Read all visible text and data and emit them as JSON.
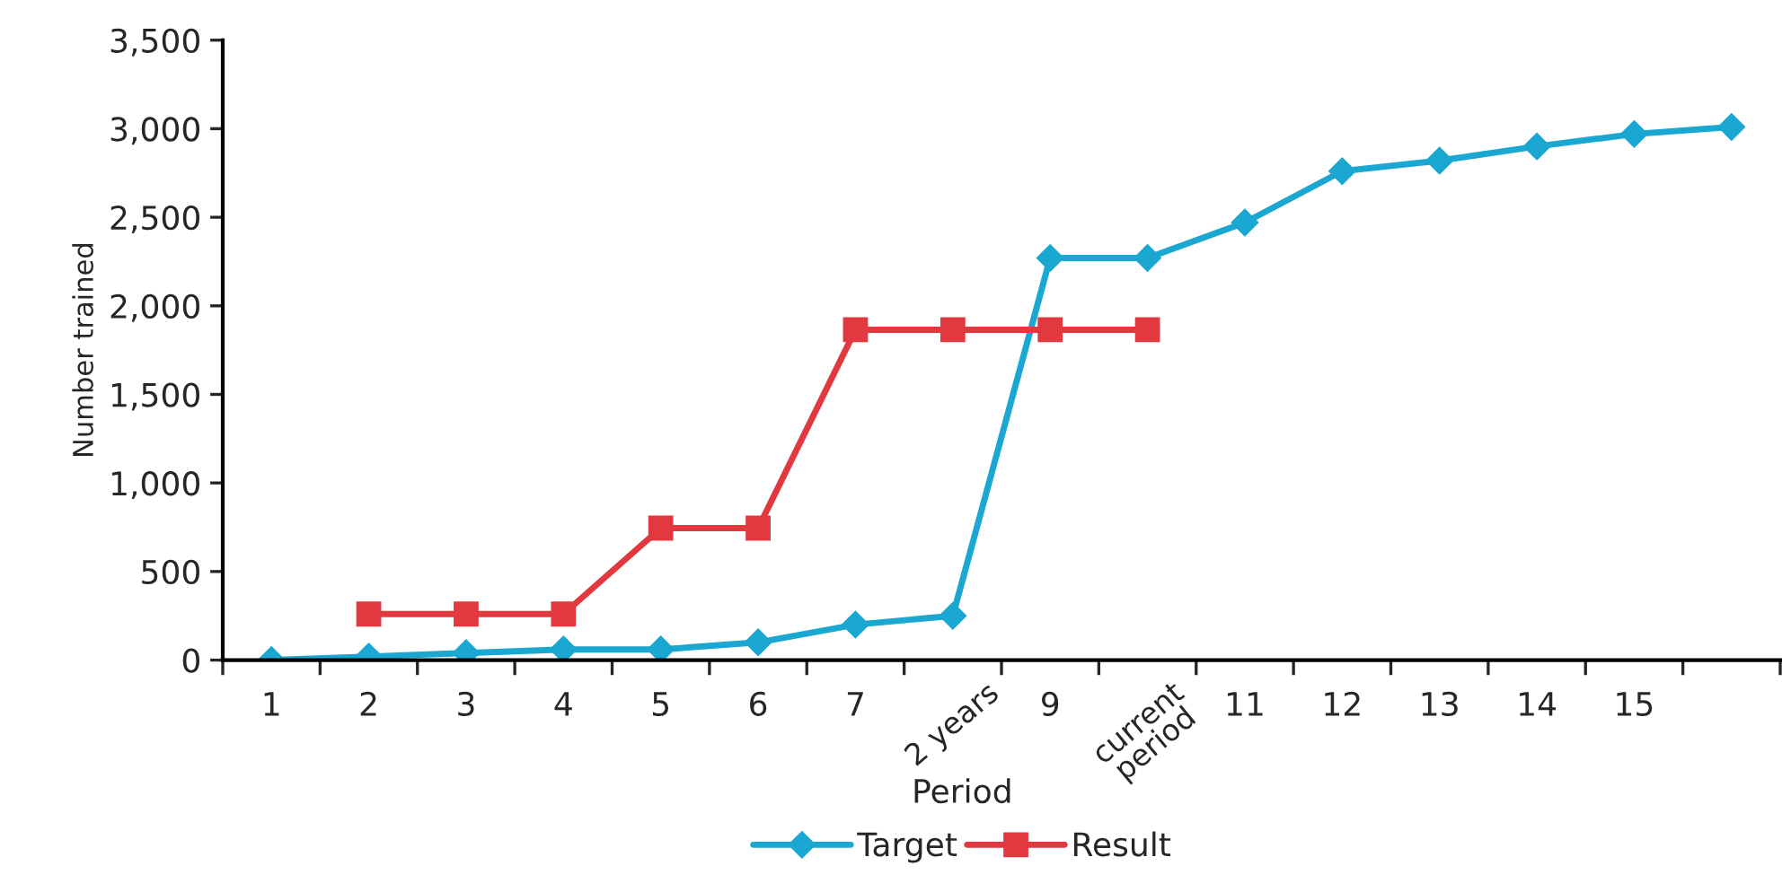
{
  "chart_data": {
    "type": "line",
    "xlabel": "Period",
    "ylabel": "Number trained",
    "categories": [
      "1",
      "2",
      "3",
      "4",
      "5",
      "6",
      "7",
      "2 years",
      "9",
      "current period",
      "11",
      "12",
      "13",
      "14",
      "15",
      null
    ],
    "series": [
      {
        "name": "Target",
        "color": "#1aa7d2",
        "marker": "diamond",
        "values": [
          0,
          20,
          40,
          60,
          60,
          100,
          200,
          250,
          2270,
          2270,
          2470,
          2760,
          2820,
          2900,
          2970,
          3010
        ]
      },
      {
        "name": "Result",
        "color": "#e2383f",
        "marker": "square",
        "values": [
          null,
          260,
          260,
          260,
          745,
          745,
          1865,
          1865,
          1865,
          1865,
          null,
          null,
          null,
          null,
          null,
          null
        ]
      }
    ],
    "ylim": [
      0,
      3500
    ],
    "yticks": [
      {
        "value": 0,
        "label": "0"
      },
      {
        "value": 500,
        "label": "500"
      },
      {
        "value": 1000,
        "label": "1,000"
      },
      {
        "value": 1500,
        "label": "1,500"
      },
      {
        "value": 2000,
        "label": "2,000"
      },
      {
        "value": 2500,
        "label": "2,500"
      },
      {
        "value": 3000,
        "label": "3,000"
      },
      {
        "value": 3500,
        "label": "3,500"
      }
    ],
    "grid": false,
    "legend": "bottom",
    "line_style": "solid"
  }
}
